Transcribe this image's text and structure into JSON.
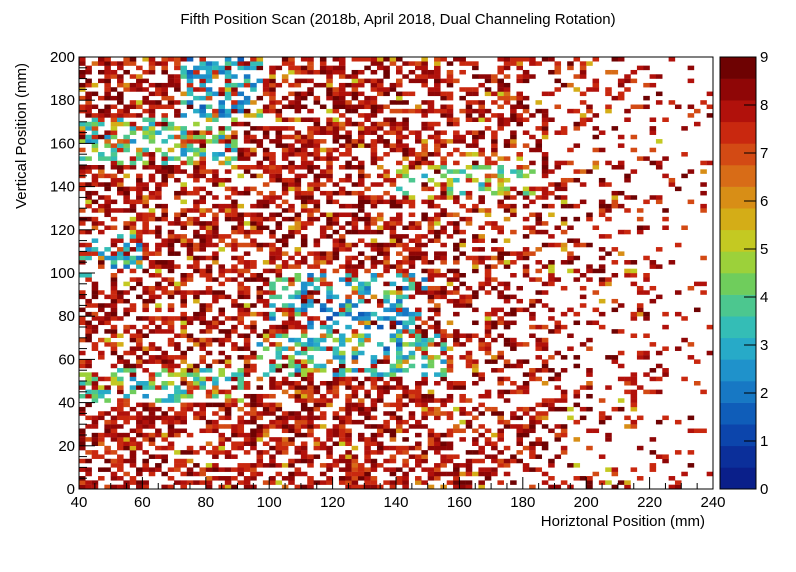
{
  "chart_data": {
    "type": "heatmap",
    "title": "Fifth Position Scan (2018b, April 2018, Dual Channeling Rotation)",
    "xlabel": "Horiztonal Position (mm)",
    "ylabel": "Vertical Position (mm)",
    "xlim": [
      40,
      240
    ],
    "ylim": [
      0,
      200
    ],
    "zlim": [
      0,
      9
    ],
    "xticks": [
      "40",
      "60",
      "80",
      "100",
      "120",
      "140",
      "160",
      "180",
      "200",
      "220",
      "240"
    ],
    "yticks": [
      "0",
      "20",
      "40",
      "60",
      "80",
      "100",
      "120",
      "140",
      "160",
      "180",
      "200"
    ],
    "zticks": [
      "0",
      "1",
      "2",
      "3",
      "4",
      "5",
      "6",
      "7",
      "8",
      "9"
    ],
    "bin_size": [
      2,
      2
    ],
    "palette": [
      "#0a1f8a",
      "#0b2f9a",
      "#0c45ac",
      "#0f5db9",
      "#1778c4",
      "#1f92cb",
      "#27aac8",
      "#34bdb6",
      "#4cc78f",
      "#6fcd5c",
      "#9cd13a",
      "#c4c922",
      "#d4ad17",
      "#d88e16",
      "#d86c17",
      "#d34a14",
      "#c9280f",
      "#b1110b",
      "#8f0606",
      "#6e0202"
    ],
    "low_intensity_regions": [
      {
        "x": [
          72,
          98
        ],
        "y": [
          170,
          200
        ],
        "level": 1.6
      },
      {
        "x": [
          40,
          90
        ],
        "y": [
          150,
          172
        ],
        "level": 2.6
      },
      {
        "x": [
          40,
          60
        ],
        "y": [
          98,
          118
        ],
        "level": 2.0
      },
      {
        "x": [
          100,
          150
        ],
        "y": [
          78,
          100
        ],
        "level": 1.8
      },
      {
        "x": [
          112,
          145
        ],
        "y": [
          60,
          84
        ],
        "level": 1.2
      },
      {
        "x": [
          95,
          155
        ],
        "y": [
          52,
          72
        ],
        "level": 2.4
      },
      {
        "x": [
          40,
          92
        ],
        "y": [
          40,
          55
        ],
        "level": 2.6
      },
      {
        "x": [
          140,
          185
        ],
        "y": [
          135,
          150
        ],
        "level": 3.0
      }
    ]
  }
}
